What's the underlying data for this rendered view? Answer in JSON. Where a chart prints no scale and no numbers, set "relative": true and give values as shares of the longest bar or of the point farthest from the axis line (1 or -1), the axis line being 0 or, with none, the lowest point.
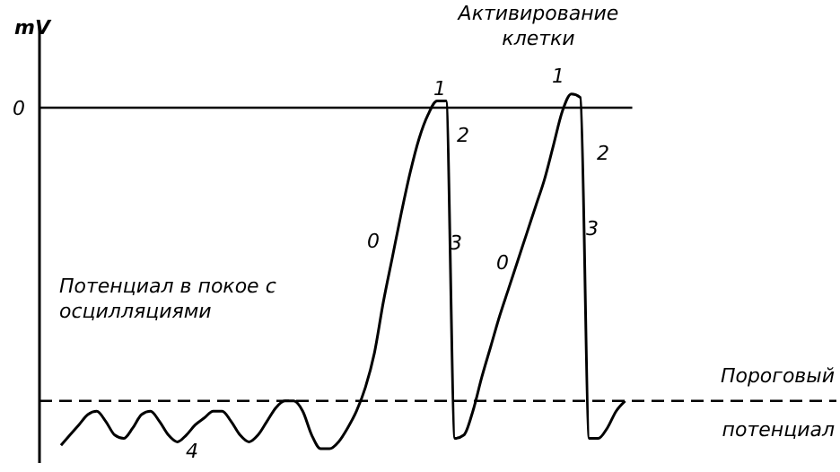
{
  "chart_data": {
    "type": "line",
    "relative": true,
    "ylabel": "mV",
    "categories": [
      null,
      null,
      null,
      null,
      null,
      null,
      null,
      null,
      null,
      null,
      null,
      null,
      null,
      null,
      null,
      null,
      null,
      null,
      null,
      null,
      null,
      null,
      null,
      null,
      null,
      null,
      null,
      null,
      null,
      null,
      null,
      null,
      null,
      null,
      null,
      null,
      null,
      null,
      null,
      null,
      null,
      null,
      null,
      null,
      null,
      null,
      null,
      null,
      null,
      null,
      null,
      null,
      null,
      null,
      null,
      null,
      null,
      null,
      null,
      null,
      null,
      null,
      null,
      null
    ],
    "series": [
      {
        "color": "#000000",
        "values": [
          -0.99,
          -0.96,
          -0.93,
          -0.9,
          -0.89,
          -0.92,
          -0.96,
          -0.97,
          -0.94,
          -0.9,
          -0.89,
          -0.92,
          -0.96,
          -0.98,
          -0.96,
          -0.93,
          -0.91,
          -0.89,
          -0.89,
          -0.92,
          -0.96,
          -0.98,
          -0.96,
          -0.92,
          -0.88,
          -0.86,
          -0.86,
          -0.89,
          -0.96,
          -1,
          -1,
          -0.98,
          -0.94,
          -0.89,
          -0.82,
          -0.72,
          -0.57,
          -0.44,
          -0.31,
          -0.19,
          -0.09,
          -0.02,
          0.02,
          0.02,
          -0.97,
          -0.96,
          -0.89,
          -0.79,
          -0.7,
          -0.61,
          -0.53,
          -0.45,
          -0.37,
          -0.29,
          -0.21,
          -0.11,
          -0.01,
          0.04,
          0.03,
          -0.97,
          -0.97,
          -0.94,
          -0.89,
          -0.86
        ]
      }
    ],
    "ref_lines": [
      {
        "axis": "y",
        "value": 0,
        "label": "0",
        "color": "#000000",
        "line_style": "solid"
      },
      {
        "axis": "y",
        "value": -0.86,
        "label": null,
        "color": "#000000",
        "line_style": "dashed"
      }
    ],
    "annotations": [
      "Активирование клетки",
      "Потенциал в покое с осцилляциями",
      "Пороговый",
      "потенциал",
      "1",
      "2",
      "0",
      "3",
      "1",
      "2",
      "0",
      "3",
      "4"
    ],
    "marker": "none",
    "line_style": "solid",
    "grid": false,
    "legend": false
  }
}
